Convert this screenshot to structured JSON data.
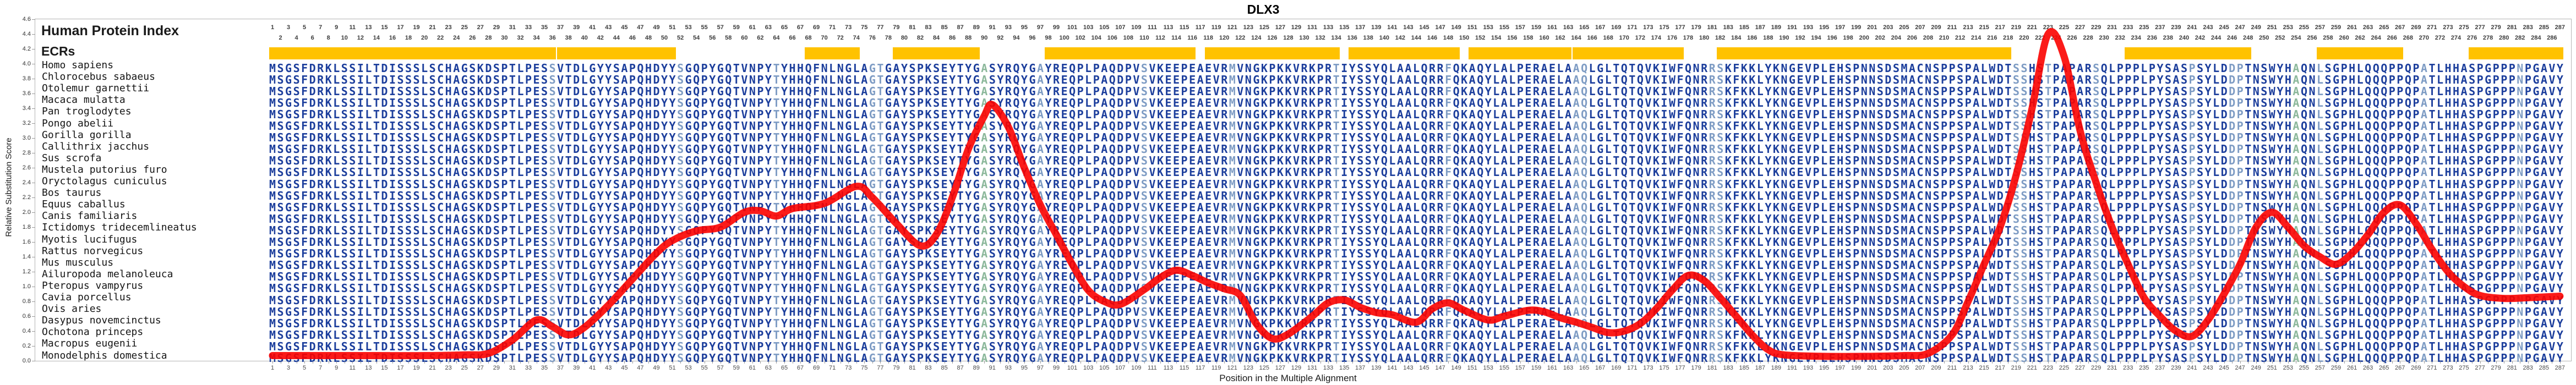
{
  "title": "DLX3",
  "y_axis": {
    "label": "Relative Substitution Score",
    "min": 0.0,
    "max": 4.6,
    "ticks": [
      0.0,
      0.2,
      0.4,
      0.6,
      0.8,
      1.0,
      1.2,
      1.4,
      1.6,
      1.8,
      2.0,
      2.2,
      2.4,
      2.6,
      2.8,
      3.0,
      3.2,
      3.4,
      3.6,
      3.8,
      4.0,
      4.2,
      4.4,
      4.6
    ]
  },
  "x_axis": {
    "label": "Position in the Multiple Alignment",
    "min": 1,
    "max": 287,
    "bottom_tick_step": 2,
    "top_ruler": "all positions 1-287, odd numbers on upper line, even numbers on lower line"
  },
  "left_labels": {
    "human_protein_index": "Human Protein Index",
    "ecrs": "ECRs"
  },
  "alignment": {
    "length": 287,
    "sequence": "MSGSFDRKLSSILTDISSSLSCHAGSKDSPTLPESSVTDLGYYSAPQHDYYSGQPYGQTVNPYTYHHQFNLNGLAGTGAYSPKSEYTYGASYRQYGAYREQPLPAQDPVSVKEEPEAEVRMVNGKPKKVRKPRTIYSSYQLAALQRRFQKAQYLALPERAELAAQLGLTQTQVKIWFQNRRSKFKKLYKNGEVPLEHSPNNSDSMACNSPPSPALWDTSSHSTPAPARSQLPPPLPYSASPSYLDDPTNSWYHAQNLSGPHLQQQPPQPATLHHASPGPPPNPGAVY",
    "species": [
      "Homo sapiens",
      "Chlorocebus sabaeus",
      "Otolemur garnettii",
      "Macaca mulatta",
      "Pan troglodytes",
      "Pongo abelii",
      "Gorilla gorilla",
      "Callithrix jacchus",
      "Sus scrofa",
      "Mustela putorius furo",
      "Oryctolagus cuniculus",
      "Bos taurus",
      "Equus caballus",
      "Canis familiaris",
      "Ictidomys tridecemlineatus",
      "Myotis lucifugus",
      "Rattus norvegicus",
      "Mus musculus",
      "Ailuropoda melanoleuca",
      "Pteropus vampyrus",
      "Cavia porcellus",
      "Ovis aries",
      "Dasypus novemcinctus",
      "Ochotona princeps",
      "Macropus eugenii",
      "Monodelphis domestica"
    ],
    "light_columns": [
      36,
      52,
      64,
      76,
      77,
      97,
      110,
      121,
      134,
      148,
      164,
      165,
      181,
      182,
      219,
      220,
      223,
      229,
      241,
      246,
      247,
      257,
      270,
      282
    ],
    "green_columns": [
      90,
      254
    ]
  },
  "ecr_bars": [
    {
      "start": 1,
      "end": 36
    },
    {
      "start": 37,
      "end": 51
    },
    {
      "start": 68,
      "end": 74
    },
    {
      "start": 79,
      "end": 89
    },
    {
      "start": 98,
      "end": 116
    },
    {
      "start": 118,
      "end": 134
    },
    {
      "start": 136,
      "end": 149
    },
    {
      "start": 151,
      "end": 163
    },
    {
      "start": 164,
      "end": 177
    },
    {
      "start": 182,
      "end": 218
    },
    {
      "start": 233,
      "end": 248
    },
    {
      "start": 257,
      "end": 267
    },
    {
      "start": 276,
      "end": 287
    }
  ],
  "colors": {
    "sequence_navy": "#1c3e9c",
    "sequence_light": "#7e9cc4",
    "sequence_green": "#8cb89b",
    "ecr_yellow": "#ffc200",
    "curve_red": "#fb0200",
    "number_gray": "#3d3d3d",
    "axis_gray": "#b4b4b4"
  },
  "chart_data": {
    "type": "line",
    "title": "DLX3",
    "xlabel": "Position in the Multiple Alignment",
    "ylabel": "Relative Substitution Score",
    "xlim": [
      1,
      287
    ],
    "ylim": [
      0,
      4.6
    ],
    "grid": false,
    "legend": "none",
    "series": [
      {
        "name": "relative-substitution-score",
        "points": [
          [
            1,
            0.07
          ],
          [
            8,
            0.07
          ],
          [
            14,
            0.07
          ],
          [
            20,
            0.07
          ],
          [
            25,
            0.08
          ],
          [
            28,
            0.1
          ],
          [
            31,
            0.28
          ],
          [
            34,
            0.55
          ],
          [
            36,
            0.46
          ],
          [
            38,
            0.35
          ],
          [
            40,
            0.45
          ],
          [
            43,
            0.75
          ],
          [
            46,
            1.1
          ],
          [
            49,
            1.45
          ],
          [
            51,
            1.62
          ],
          [
            54,
            1.75
          ],
          [
            57,
            1.8
          ],
          [
            60,
            2.0
          ],
          [
            62,
            2.02
          ],
          [
            64,
            1.95
          ],
          [
            66,
            2.05
          ],
          [
            70,
            2.12
          ],
          [
            74,
            2.35
          ],
          [
            76,
            2.2
          ],
          [
            79,
            1.85
          ],
          [
            82,
            1.55
          ],
          [
            84,
            1.7
          ],
          [
            86,
            2.2
          ],
          [
            88,
            2.85
          ],
          [
            90,
            3.3
          ],
          [
            91,
            3.45
          ],
          [
            93,
            3.15
          ],
          [
            95,
            2.6
          ],
          [
            97,
            2.1
          ],
          [
            99,
            1.7
          ],
          [
            101,
            1.3
          ],
          [
            103,
            0.95
          ],
          [
            105,
            0.8
          ],
          [
            107,
            0.76
          ],
          [
            110,
            0.96
          ],
          [
            112,
            1.12
          ],
          [
            114,
            1.22
          ],
          [
            116,
            1.15
          ],
          [
            118,
            1.05
          ],
          [
            120,
            0.97
          ],
          [
            122,
            0.88
          ],
          [
            124,
            0.5
          ],
          [
            126,
            0.3
          ],
          [
            128,
            0.36
          ],
          [
            131,
            0.6
          ],
          [
            133,
            0.78
          ],
          [
            135,
            0.82
          ],
          [
            137,
            0.72
          ],
          [
            139,
            0.65
          ],
          [
            141,
            0.62
          ],
          [
            144,
            0.52
          ],
          [
            146,
            0.7
          ],
          [
            148,
            0.78
          ],
          [
            150,
            0.68
          ],
          [
            153,
            0.55
          ],
          [
            155,
            0.6
          ],
          [
            158,
            0.68
          ],
          [
            160,
            0.66
          ],
          [
            162,
            0.58
          ],
          [
            164,
            0.52
          ],
          [
            166,
            0.45
          ],
          [
            168,
            0.38
          ],
          [
            170,
            0.4
          ],
          [
            172,
            0.5
          ],
          [
            174,
            0.7
          ],
          [
            176,
            0.95
          ],
          [
            178,
            1.15
          ],
          [
            180,
            1.08
          ],
          [
            182,
            0.85
          ],
          [
            184,
            0.6
          ],
          [
            186,
            0.35
          ],
          [
            188,
            0.15
          ],
          [
            190,
            0.08
          ],
          [
            195,
            0.06
          ],
          [
            200,
            0.06
          ],
          [
            205,
            0.07
          ],
          [
            208,
            0.1
          ],
          [
            211,
            0.35
          ],
          [
            213,
            0.8
          ],
          [
            215,
            1.3
          ],
          [
            217,
            1.8
          ],
          [
            219,
            2.5
          ],
          [
            221,
            3.4
          ],
          [
            223,
            4.4
          ],
          [
            225,
            4.1
          ],
          [
            227,
            3.1
          ],
          [
            229,
            2.4
          ],
          [
            231,
            1.8
          ],
          [
            233,
            1.3
          ],
          [
            235,
            0.85
          ],
          [
            237,
            0.6
          ],
          [
            239,
            0.4
          ],
          [
            241,
            0.33
          ],
          [
            243,
            0.55
          ],
          [
            245,
            0.9
          ],
          [
            247,
            1.3
          ],
          [
            249,
            1.8
          ],
          [
            251,
            2.0
          ],
          [
            253,
            1.8
          ],
          [
            255,
            1.55
          ],
          [
            257,
            1.4
          ],
          [
            259,
            1.3
          ],
          [
            261,
            1.45
          ],
          [
            263,
            1.7
          ],
          [
            265,
            2.0
          ],
          [
            267,
            2.1
          ],
          [
            269,
            1.85
          ],
          [
            271,
            1.5
          ],
          [
            273,
            1.2
          ],
          [
            275,
            1.0
          ],
          [
            277,
            0.88
          ],
          [
            280,
            0.84
          ],
          [
            283,
            0.85
          ],
          [
            287,
            0.87
          ]
        ]
      }
    ]
  }
}
